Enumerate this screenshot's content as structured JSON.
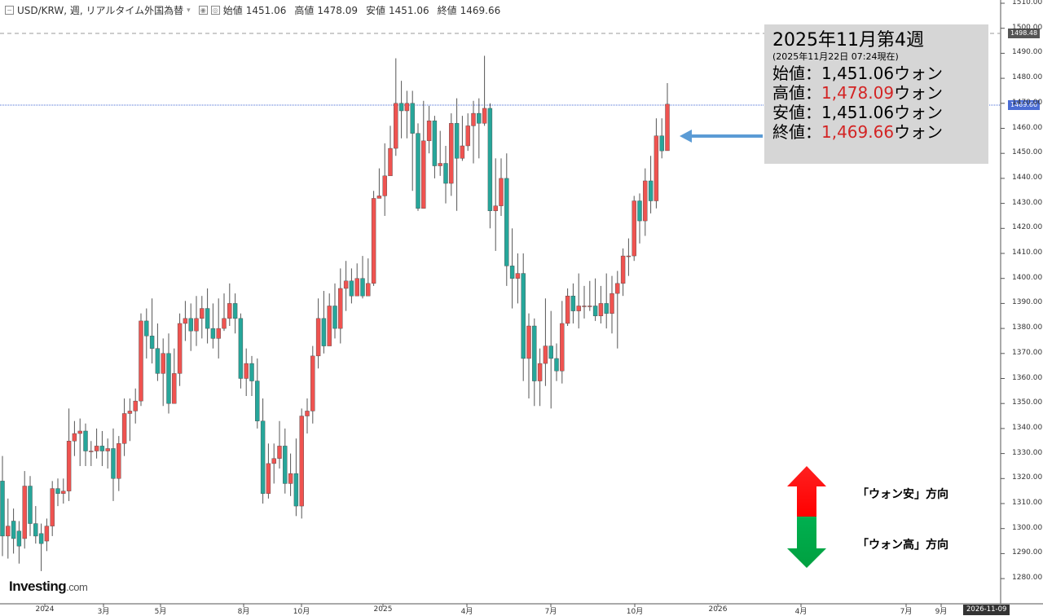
{
  "header": {
    "symbol": "USD/KRW, 週, リアルタイム外国為替",
    "open_label": "始値",
    "open_value": "1451.06",
    "high_label": "高値",
    "high_value": "1478.09",
    "low_label": "安値",
    "low_value": "1451.06",
    "close_label": "終値",
    "close_value": "1469.66"
  },
  "info_box": {
    "title": "2025年11月第4週",
    "subtitle": "(2025年11月22日 07:24現在)",
    "rows": [
      {
        "label": "始値：",
        "value": "1,451.06",
        "unit": "ウォン"
      },
      {
        "label": "高値：",
        "value": "1,478.09",
        "unit": "ウォン"
      },
      {
        "label": "安値：",
        "value": "1,451.06",
        "unit": "ウォン"
      },
      {
        "label": "終値：",
        "value": "1,469.66",
        "unit": "ウォン"
      }
    ]
  },
  "legend": {
    "weak_label": "「ウォン安」方向",
    "strong_label": "「ウォン高」方向"
  },
  "logo": {
    "name": "Investing",
    "suffix": ".com"
  },
  "price_markers": {
    "dashed_level": "1498.48",
    "current": "1469.66"
  },
  "date_marker": "2026-11-09",
  "colors": {
    "up": "#ef5350",
    "down": "#26a69a",
    "current_line": "#4a6cd4",
    "arrow": "#5b9bd5",
    "up_arrow": "#ff0000",
    "down_arrow": "#00b050"
  },
  "chart_data": {
    "type": "candlestick",
    "y_ticks": [
      "1280.00",
      "1290.00",
      "1300.00",
      "1310.00",
      "1320.00",
      "1330.00",
      "1340.00",
      "1350.00",
      "1360.00",
      "1370.00",
      "1380.00",
      "1390.00",
      "1400.00",
      "1410.00",
      "1420.00",
      "1430.00",
      "1440.00",
      "1450.00",
      "1460.00",
      "1470.00",
      "1480.00",
      "1490.00",
      "1500.00",
      "1510.00"
    ],
    "ylim": [
      1275,
      1512
    ],
    "x_labels": [
      "2024",
      "3月",
      "5月",
      "8月",
      "10月",
      "2025",
      "4月",
      "7月",
      "10月",
      "2026",
      "4月",
      "7月",
      "9月"
    ],
    "candles": [
      [
        1319,
        1297,
        1329,
        1289
      ],
      [
        1297,
        1301,
        1312,
        1288
      ],
      [
        1303,
        1296,
        1308,
        1290
      ],
      [
        1299,
        1293,
        1303,
        1286
      ],
      [
        1296,
        1317,
        1323,
        1292
      ],
      [
        1317,
        1302,
        1321,
        1297
      ],
      [
        1302,
        1297,
        1309,
        1294
      ],
      [
        1298,
        1294,
        1302,
        1283
      ],
      [
        1295,
        1301,
        1304,
        1291
      ],
      [
        1301,
        1316,
        1319,
        1297
      ],
      [
        1316,
        1314,
        1320,
        1309
      ],
      [
        1314,
        1315,
        1320,
        1310
      ],
      [
        1315,
        1335,
        1348,
        1311
      ],
      [
        1335,
        1338,
        1343,
        1329
      ],
      [
        1338,
        1339,
        1344,
        1325
      ],
      [
        1339,
        1331,
        1342,
        1325
      ],
      [
        1331,
        1331,
        1335,
        1325
      ],
      [
        1331,
        1333,
        1340,
        1328
      ],
      [
        1333,
        1331,
        1339,
        1325
      ],
      [
        1331,
        1332,
        1336,
        1324
      ],
      [
        1332,
        1320,
        1340,
        1311
      ],
      [
        1320,
        1334,
        1337,
        1315
      ],
      [
        1334,
        1346,
        1352,
        1329
      ],
      [
        1346,
        1347,
        1352,
        1335
      ],
      [
        1347,
        1351,
        1356,
        1342
      ],
      [
        1351,
        1383,
        1386,
        1349
      ],
      [
        1383,
        1377,
        1388,
        1368
      ],
      [
        1377,
        1372,
        1392,
        1366
      ],
      [
        1372,
        1362,
        1382,
        1359
      ],
      [
        1362,
        1370,
        1376,
        1349
      ],
      [
        1370,
        1350,
        1378,
        1346
      ],
      [
        1350,
        1362,
        1372,
        1355
      ],
      [
        1362,
        1382,
        1386,
        1357
      ],
      [
        1382,
        1384,
        1391,
        1375
      ],
      [
        1384,
        1379,
        1390,
        1371
      ],
      [
        1379,
        1384,
        1393,
        1373
      ],
      [
        1384,
        1388,
        1393,
        1376
      ],
      [
        1388,
        1380,
        1396,
        1374
      ],
      [
        1380,
        1376,
        1390,
        1372
      ],
      [
        1376,
        1380,
        1392,
        1368
      ],
      [
        1380,
        1384,
        1394,
        1379
      ],
      [
        1384,
        1390,
        1398,
        1381
      ],
      [
        1390,
        1384,
        1394,
        1378
      ],
      [
        1384,
        1360,
        1386,
        1356
      ],
      [
        1360,
        1366,
        1372,
        1353
      ],
      [
        1366,
        1359,
        1369,
        1353
      ],
      [
        1359,
        1343,
        1368,
        1340
      ],
      [
        1343,
        1314,
        1352,
        1310
      ],
      [
        1314,
        1326,
        1334,
        1312
      ],
      [
        1326,
        1328,
        1334,
        1318
      ],
      [
        1328,
        1333,
        1343,
        1324
      ],
      [
        1333,
        1318,
        1340,
        1314
      ],
      [
        1318,
        1322,
        1330,
        1313
      ],
      [
        1322,
        1309,
        1336,
        1305
      ],
      [
        1309,
        1345,
        1348,
        1304
      ],
      [
        1345,
        1347,
        1352,
        1338
      ],
      [
        1347,
        1369,
        1373,
        1342
      ],
      [
        1369,
        1384,
        1392,
        1364
      ],
      [
        1384,
        1373,
        1395,
        1370
      ],
      [
        1373,
        1389,
        1394,
        1373
      ],
      [
        1389,
        1380,
        1398,
        1376
      ],
      [
        1380,
        1396,
        1404,
        1374
      ],
      [
        1396,
        1399,
        1407,
        1387
      ],
      [
        1399,
        1393,
        1404,
        1390
      ],
      [
        1393,
        1400,
        1406,
        1395
      ],
      [
        1400,
        1393,
        1409,
        1392
      ],
      [
        1393,
        1398,
        1408,
        1394
      ],
      [
        1398,
        1432,
        1435,
        1397
      ],
      [
        1432,
        1433,
        1444,
        1432
      ],
      [
        1433,
        1441,
        1454,
        1425
      ],
      [
        1441,
        1452,
        1461,
        1442
      ],
      [
        1452,
        1470,
        1488,
        1449
      ],
      [
        1470,
        1467,
        1479,
        1456
      ],
      [
        1467,
        1470,
        1475,
        1456
      ],
      [
        1470,
        1458,
        1475,
        1435
      ],
      [
        1458,
        1428,
        1462,
        1427
      ],
      [
        1428,
        1455,
        1471,
        1428
      ],
      [
        1455,
        1463,
        1469,
        1450
      ],
      [
        1463,
        1445,
        1465,
        1440
      ],
      [
        1445,
        1446,
        1459,
        1441
      ],
      [
        1446,
        1438,
        1453,
        1430
      ],
      [
        1438,
        1462,
        1466,
        1433
      ],
      [
        1462,
        1448,
        1472,
        1427
      ],
      [
        1448,
        1453,
        1465,
        1447
      ],
      [
        1453,
        1461,
        1466,
        1451
      ],
      [
        1461,
        1466,
        1471,
        1446
      ],
      [
        1466,
        1462,
        1472,
        1448
      ],
      [
        1462,
        1468,
        1489,
        1461
      ],
      [
        1468,
        1427,
        1470,
        1420
      ],
      [
        1427,
        1429,
        1448,
        1411
      ],
      [
        1429,
        1440,
        1448,
        1425
      ],
      [
        1440,
        1405,
        1450,
        1397
      ],
      [
        1405,
        1400,
        1420,
        1388
      ],
      [
        1400,
        1402,
        1410,
        1390
      ],
      [
        1402,
        1368,
        1410,
        1359
      ],
      [
        1368,
        1381,
        1386,
        1352
      ],
      [
        1381,
        1359,
        1384,
        1349
      ],
      [
        1359,
        1366,
        1372,
        1349
      ],
      [
        1366,
        1373,
        1392,
        1357
      ],
      [
        1373,
        1368,
        1387,
        1348
      ],
      [
        1368,
        1363,
        1374,
        1359
      ],
      [
        1363,
        1382,
        1391,
        1358
      ],
      [
        1382,
        1393,
        1396,
        1381
      ],
      [
        1393,
        1387,
        1398,
        1382
      ],
      [
        1387,
        1389,
        1402,
        1380
      ],
      [
        1389,
        1389,
        1397,
        1384
      ],
      [
        1389,
        1389,
        1399,
        1387
      ],
      [
        1389,
        1385,
        1400,
        1383
      ],
      [
        1385,
        1390,
        1397,
        1382
      ],
      [
        1390,
        1386,
        1402,
        1380
      ],
      [
        1386,
        1394,
        1401,
        1378
      ],
      [
        1394,
        1398,
        1403,
        1372
      ],
      [
        1398,
        1409,
        1412,
        1393
      ],
      [
        1409,
        1409,
        1416,
        1401
      ],
      [
        1409,
        1431,
        1433,
        1407
      ],
      [
        1431,
        1423,
        1434,
        1414
      ],
      [
        1423,
        1439,
        1444,
        1417
      ],
      [
        1439,
        1431,
        1449,
        1426
      ],
      [
        1431,
        1457,
        1464,
        1428
      ],
      [
        1457,
        1451,
        1464,
        1448
      ],
      [
        1451.06,
        1469.66,
        1478.09,
        1451.06
      ]
    ]
  }
}
